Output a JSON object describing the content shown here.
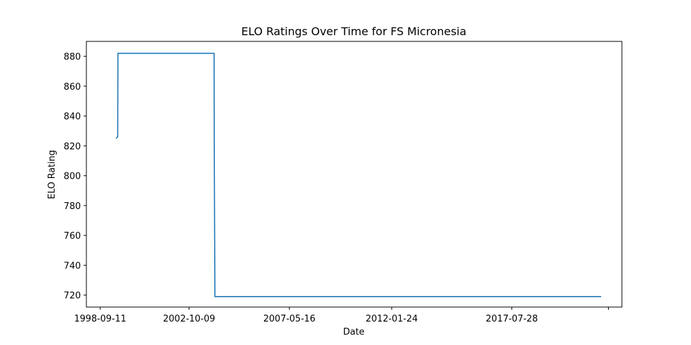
{
  "chart_data": {
    "type": "line",
    "title": "ELO Ratings Over Time for FS Micronesia",
    "xlabel": "Date",
    "ylabel": "ELO Rating",
    "x_ticks": [
      "1998-09-11",
      "2002-10-09",
      "2007-05-16",
      "2012-01-24",
      "2017-07-28",
      ""
    ],
    "x_tick_dates": [
      "1998-09-11",
      "2002-10-09",
      "2007-05-16",
      "2012-01-24",
      "2017-07-28",
      "2022-01-01"
    ],
    "y_ticks": [
      720,
      740,
      760,
      780,
      800,
      820,
      840,
      860,
      880
    ],
    "xlim": [
      "1998-01-22",
      "2022-08-15"
    ],
    "ylim": [
      712,
      890
    ],
    "grid": false,
    "series": [
      {
        "color": "#1f77b4",
        "points": [
          {
            "x": "1999-06-01",
            "y": 825
          },
          {
            "x": "1999-07-01",
            "y": 826
          },
          {
            "x": "1999-07-05",
            "y": 882
          },
          {
            "x": "2003-12-01",
            "y": 882
          },
          {
            "x": "2003-12-05",
            "y": 817
          },
          {
            "x": "2003-12-10",
            "y": 765
          },
          {
            "x": "2003-12-15",
            "y": 719
          },
          {
            "x": "2021-09-01",
            "y": 719
          }
        ]
      }
    ]
  }
}
